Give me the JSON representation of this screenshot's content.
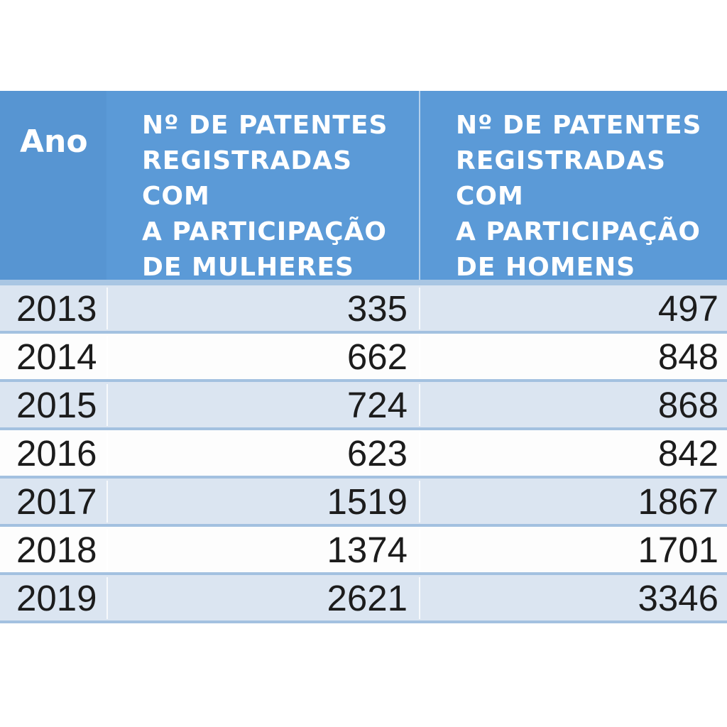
{
  "table": {
    "columns": [
      {
        "id": "ano",
        "label": "Ano"
      },
      {
        "id": "mulheres",
        "label": "Nº DE PATENTES\nREGISTRADAS COM\nA PARTICIPAÇÃO\nDE MULHERES"
      },
      {
        "id": "homens",
        "label": "Nº DE PATENTES\nREGISTRADAS COM\nA PARTICIPAÇÃO\nDE HOMENS"
      }
    ],
    "rows": [
      {
        "year": "2013",
        "mulheres": "335",
        "homens": "497"
      },
      {
        "year": "2014",
        "mulheres": "662",
        "homens": "848"
      },
      {
        "year": "2015",
        "mulheres": "724",
        "homens": "868"
      },
      {
        "year": "2016",
        "mulheres": "623",
        "homens": "842"
      },
      {
        "year": "2017",
        "mulheres": "1519",
        "homens": "1867"
      },
      {
        "year": "2018",
        "mulheres": "1374",
        "homens": "1701"
      },
      {
        "year": "2019",
        "mulheres": "2621",
        "homens": "3346"
      }
    ]
  },
  "colors": {
    "header_bg": "#5b9ad7",
    "header_ano_bg": "#5795d2",
    "header_text": "#ffffff",
    "row_alt_bg": "#dbe5f1",
    "row_pale_bg": "#fdfdfd",
    "grid_line": "#a3c1e0",
    "header_bottom_band": "#a9c6e3",
    "body_text": "#1c1c1c"
  },
  "chart_data": {
    "type": "table",
    "title": "",
    "columns": [
      "Ano",
      "Nº de patentes registradas com a participação de mulheres",
      "Nº de patentes registradas com a participação de homens"
    ],
    "years": [
      2013,
      2014,
      2015,
      2016,
      2017,
      2018,
      2019
    ],
    "series": [
      {
        "name": "Patentes com participação de mulheres",
        "values": [
          335,
          662,
          724,
          623,
          1519,
          1374,
          2621
        ]
      },
      {
        "name": "Patentes com participação de homens",
        "values": [
          497,
          848,
          868,
          842,
          1867,
          1701,
          3346
        ]
      }
    ]
  }
}
